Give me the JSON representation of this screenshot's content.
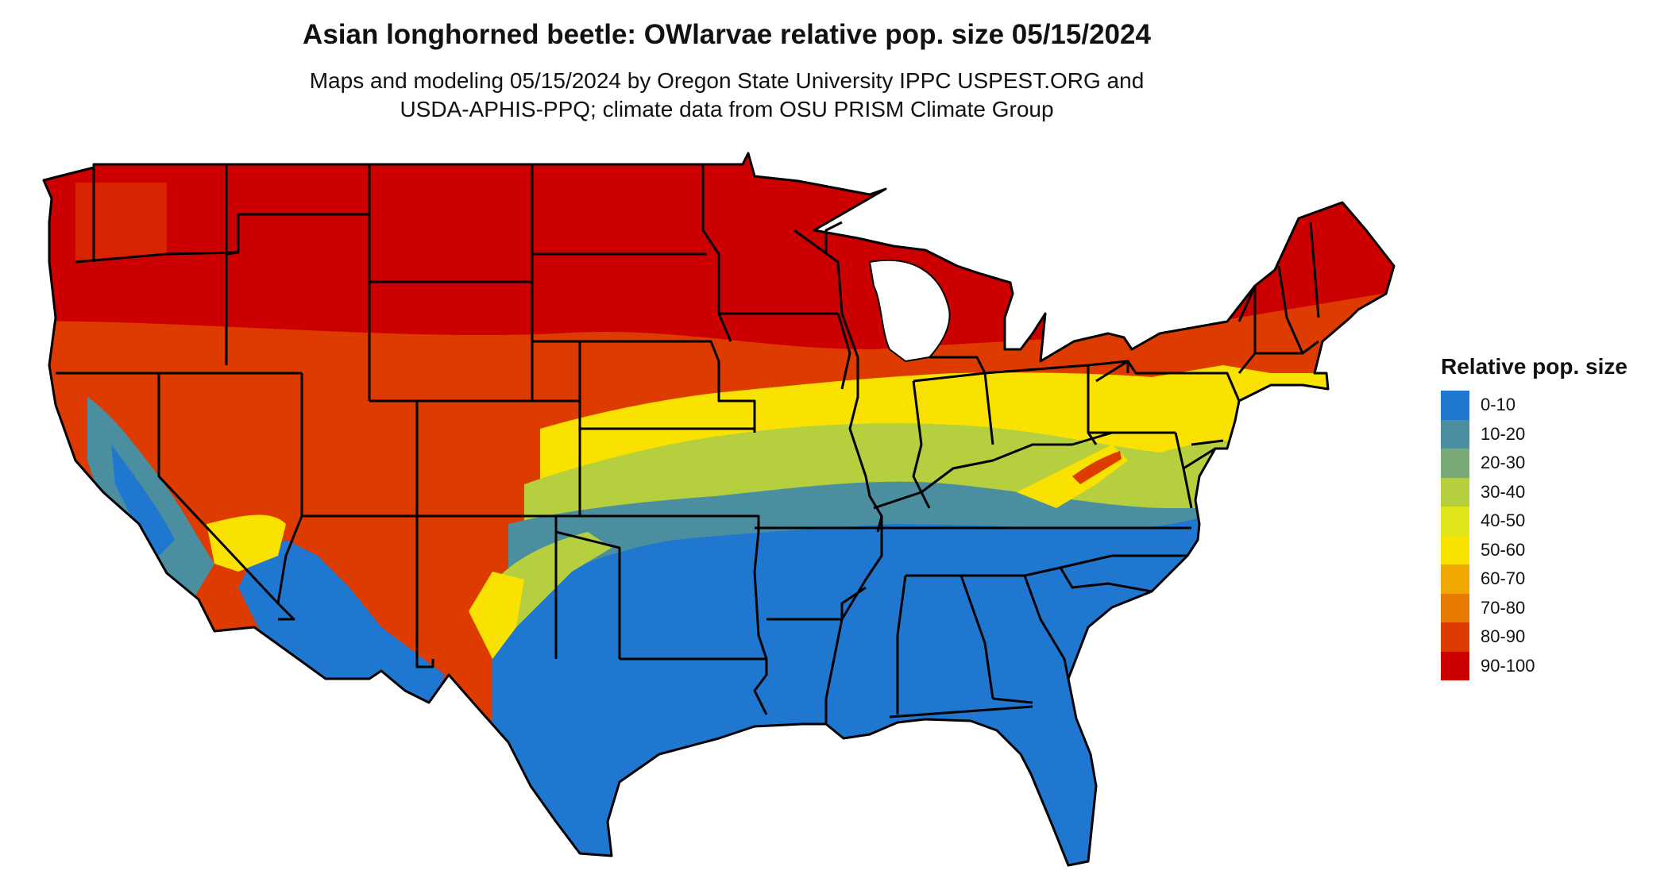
{
  "title": "Asian longhorned beetle: OWlarvae relative pop. size 05/15/2024",
  "subtitle_line1": "Maps and modeling 05/15/2024 by Oregon State University IPPC USPEST.ORG and",
  "subtitle_line2": "USDA-APHIS-PPQ; climate data from OSU PRISM Climate Group",
  "legend": {
    "title": "Relative pop. size",
    "items": [
      {
        "label": "0-10",
        "color": "#1f77d0"
      },
      {
        "label": "10-20",
        "color": "#4a8ea0"
      },
      {
        "label": "20-30",
        "color": "#7aaa78"
      },
      {
        "label": "30-40",
        "color": "#b5cf3e"
      },
      {
        "label": "40-50",
        "color": "#dfe61a"
      },
      {
        "label": "50-60",
        "color": "#f9e200"
      },
      {
        "label": "60-70",
        "color": "#f0a800"
      },
      {
        "label": "70-80",
        "color": "#e87a00"
      },
      {
        "label": "80-90",
        "color": "#dd3b00"
      },
      {
        "label": "90-100",
        "color": "#cc0000"
      }
    ]
  }
}
